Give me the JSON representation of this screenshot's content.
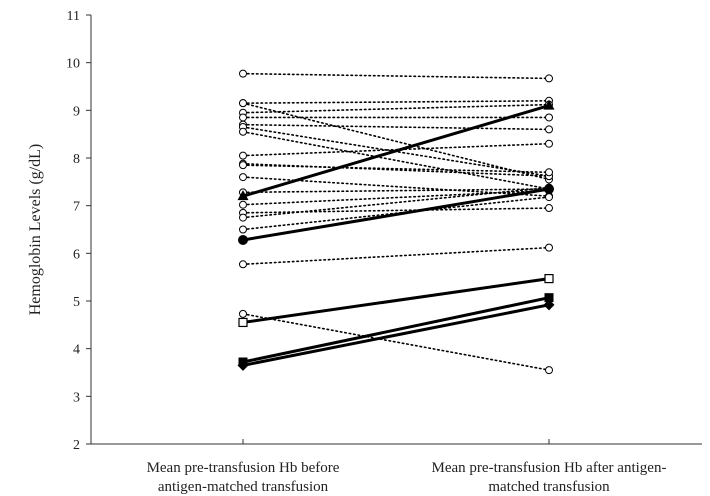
{
  "chart_data": {
    "type": "line",
    "title": "",
    "xlabel": "",
    "ylabel": "Hemoglobin Levels (g/dL)",
    "ylim": [
      2,
      11
    ],
    "yticks": [
      2,
      3,
      4,
      5,
      6,
      7,
      8,
      9,
      10,
      11
    ],
    "grid": false,
    "legend": "none",
    "categories": [
      [
        "Mean pre-transfusion Hb before",
        "antigen-matched transfusion"
      ],
      [
        "Mean pre-transfusion Hb after antigen-",
        "matched transfusion"
      ]
    ],
    "series": [
      {
        "values": [
          9.77,
          9.67
        ],
        "style": "dotted",
        "marker": "circle-open"
      },
      {
        "values": [
          9.15,
          9.2
        ],
        "style": "dotted",
        "marker": "circle-open"
      },
      {
        "values": [
          9.15,
          7.55
        ],
        "style": "dotted",
        "marker": "circle-open"
      },
      {
        "values": [
          8.95,
          9.12
        ],
        "style": "dotted",
        "marker": "circle-open"
      },
      {
        "values": [
          8.85,
          8.85
        ],
        "style": "dotted",
        "marker": "circle-open"
      },
      {
        "values": [
          8.7,
          8.6
        ],
        "style": "dotted",
        "marker": "circle-open"
      },
      {
        "values": [
          8.65,
          7.62
        ],
        "style": "dotted",
        "marker": "circle-open"
      },
      {
        "values": [
          8.55,
          7.35
        ],
        "style": "dotted",
        "marker": "circle-open"
      },
      {
        "values": [
          8.05,
          8.3
        ],
        "style": "dotted",
        "marker": "circle-open"
      },
      {
        "values": [
          7.88,
          7.62
        ],
        "style": "dotted",
        "marker": "circle-open"
      },
      {
        "values": [
          7.85,
          7.7
        ],
        "style": "dotted",
        "marker": "circle-open"
      },
      {
        "values": [
          7.6,
          7.2
        ],
        "style": "dotted",
        "marker": "circle-open"
      },
      {
        "values": [
          7.28,
          7.35
        ],
        "style": "dotted",
        "marker": "circle-open"
      },
      {
        "values": [
          7.02,
          7.32
        ],
        "style": "dotted",
        "marker": "circle-open"
      },
      {
        "values": [
          6.85,
          6.95
        ],
        "style": "dotted",
        "marker": "circle-open"
      },
      {
        "values": [
          6.75,
          7.38
        ],
        "style": "dotted",
        "marker": "circle-open"
      },
      {
        "values": [
          6.5,
          7.18
        ],
        "style": "dotted",
        "marker": "circle-open"
      },
      {
        "values": [
          5.77,
          6.12
        ],
        "style": "dotted",
        "marker": "circle-open"
      },
      {
        "values": [
          4.73,
          3.55
        ],
        "style": "dotted",
        "marker": "circle-open"
      },
      {
        "values": [
          7.2,
          9.1
        ],
        "style": "solid",
        "marker": "triangle-filled"
      },
      {
        "values": [
          6.28,
          7.35
        ],
        "style": "solid",
        "marker": "circle-filled"
      },
      {
        "values": [
          4.55,
          5.47
        ],
        "style": "solid",
        "marker": "square-open"
      },
      {
        "values": [
          3.72,
          5.07
        ],
        "style": "solid",
        "marker": "square-filled"
      },
      {
        "values": [
          3.65,
          4.92
        ],
        "style": "solid",
        "marker": "diamond-filled"
      }
    ]
  }
}
